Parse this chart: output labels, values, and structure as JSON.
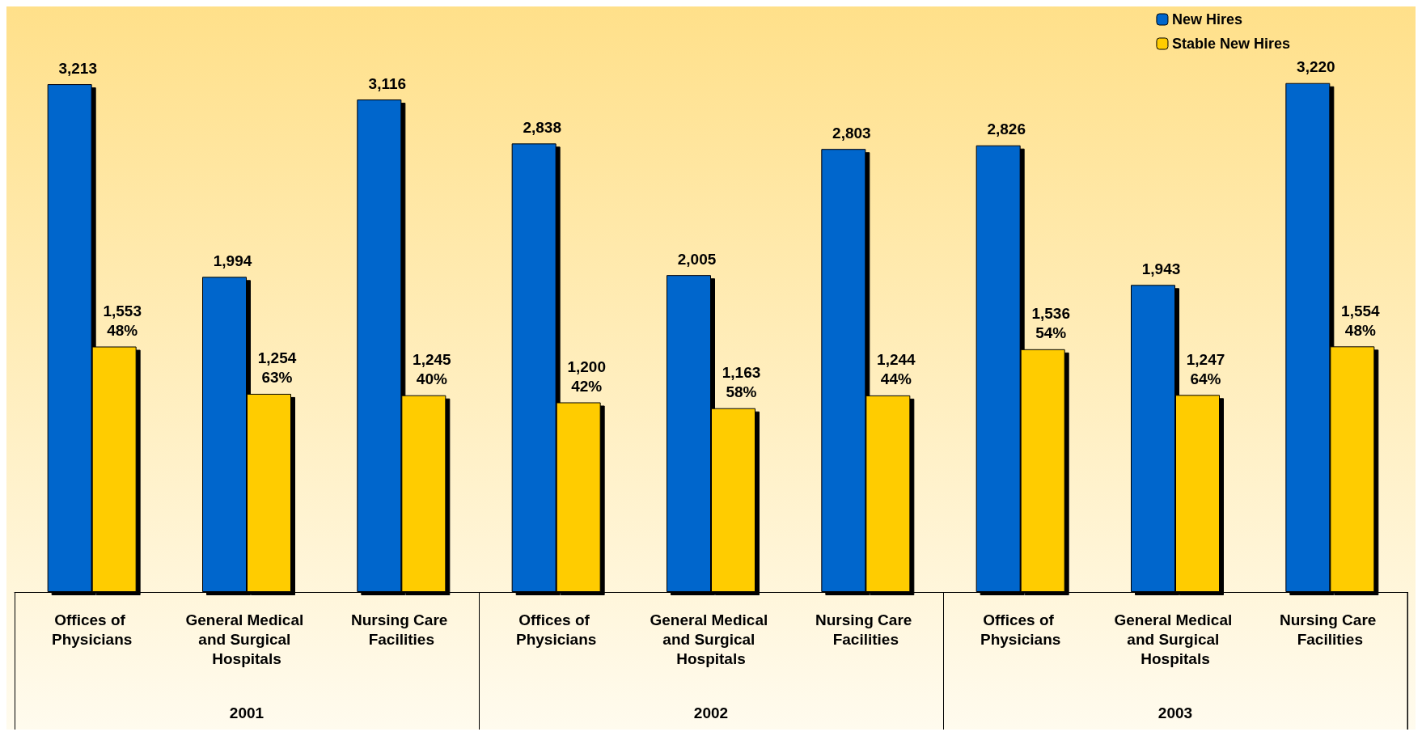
{
  "chart_data": {
    "type": "bar",
    "categories": [
      "Offices of Physicians",
      "General Medical and Surgical Hospitals",
      "Nursing Care Facilities",
      "Offices of Physicians",
      "General Medical and Surgical Hospitals",
      "Nursing Care Facilities",
      "Offices of Physicians",
      "General Medical and Surgical Hospitals",
      "Nursing Care Facilities"
    ],
    "series": [
      {
        "name": "New Hires",
        "color": "#0066cc",
        "values": [
          3213,
          1994,
          3116,
          2838,
          2005,
          2803,
          2826,
          1943,
          3220
        ],
        "value_labels": [
          "3,213",
          "1,994",
          "3,116",
          "2,838",
          "2,005",
          "2,803",
          "2,826",
          "1,943",
          "3,220"
        ]
      },
      {
        "name": "Stable New Hires",
        "color": "#ffcc00",
        "values": [
          1553,
          1254,
          1245,
          1200,
          1163,
          1244,
          1536,
          1247,
          1554
        ],
        "value_labels": [
          "1,553\n48%",
          "1,254\n63%",
          "1,245\n40%",
          "1,200\n42%",
          "1,163\n58%",
          "1,244\n44%",
          "1,536\n54%",
          "1,247\n64%",
          "1,554\n48%"
        ]
      }
    ],
    "annotations": [
      "2001",
      "2002",
      "2003"
    ],
    "legend": "top right",
    "grid": false
  }
}
